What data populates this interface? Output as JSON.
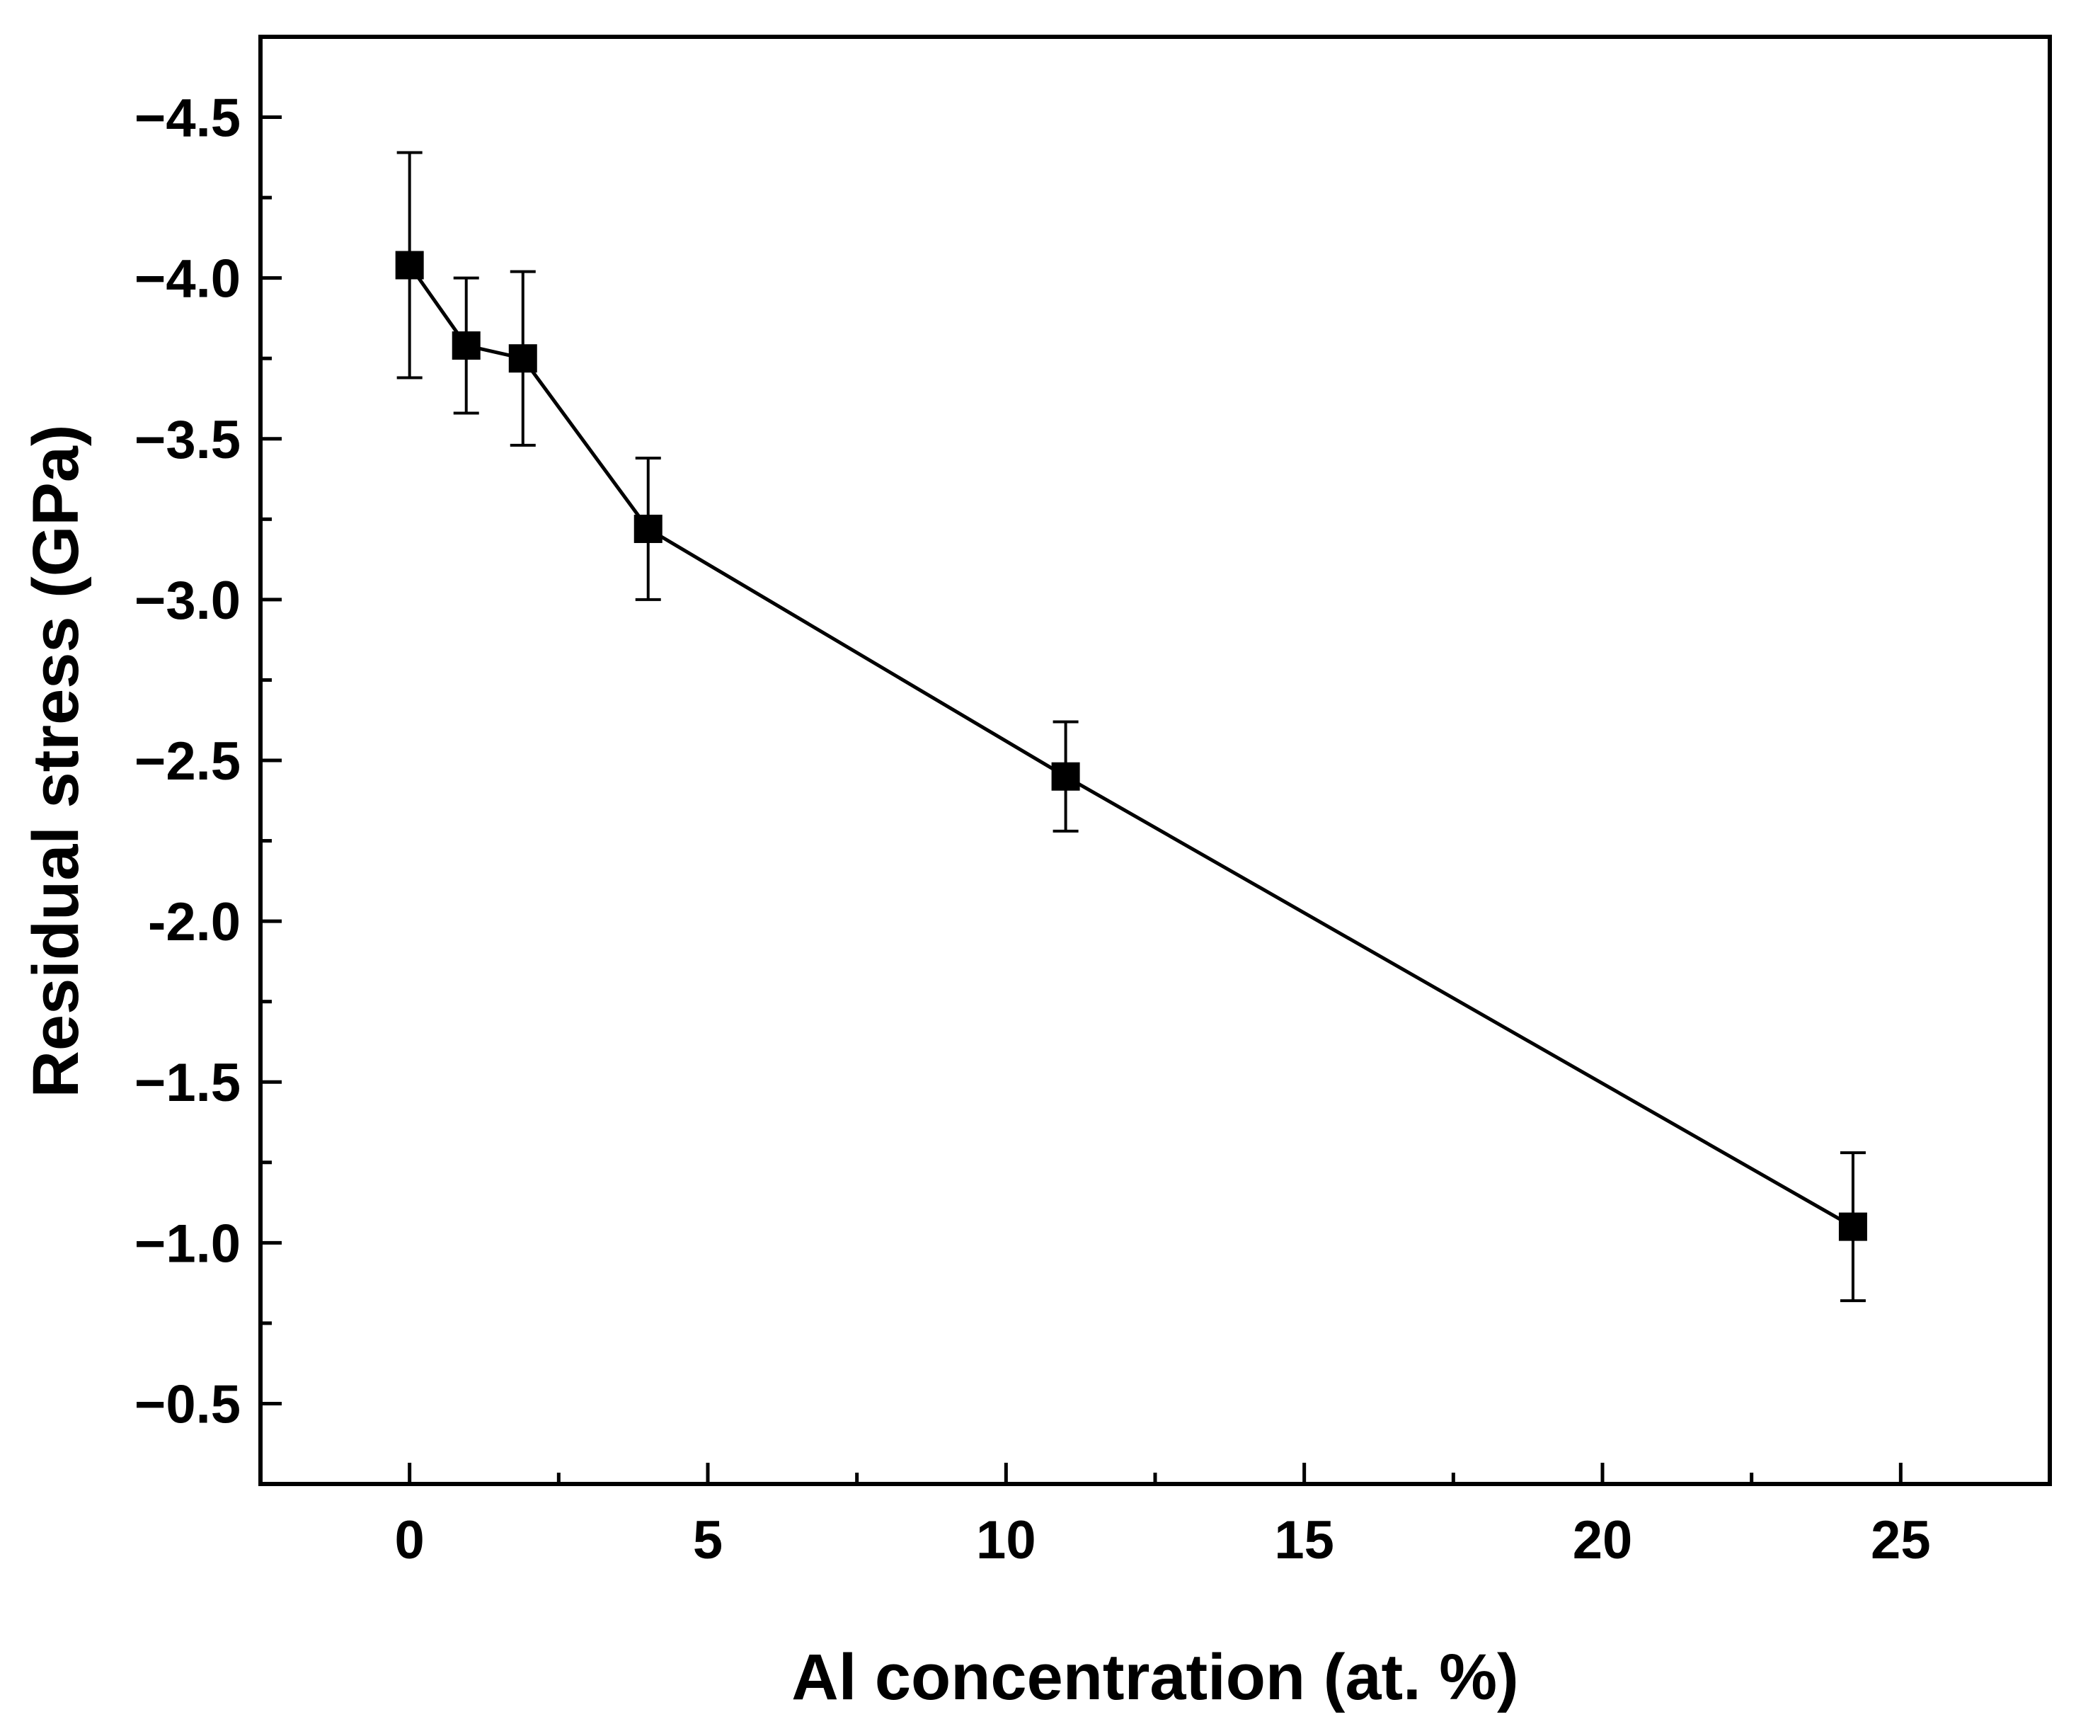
{
  "chart_data": {
    "type": "line",
    "title": "",
    "xlabel": "Al concentration (at. %)",
    "ylabel": "Residual stress (GPa)",
    "xlim": [
      -2.5,
      27.5
    ],
    "ylim": [
      -4.75,
      -0.25
    ],
    "y_inverted": true,
    "grid": false,
    "legend": "none",
    "x_ticks": [
      0,
      5,
      10,
      15,
      20,
      25
    ],
    "x_tick_labels": [
      "0",
      "5",
      "10",
      "15",
      "20",
      "25"
    ],
    "x_minor_ticks": [
      2.5,
      7.5,
      12.5,
      17.5,
      22.5
    ],
    "y_ticks": [
      -4.5,
      -4.0,
      -3.5,
      -3.0,
      -2.5,
      -2.0,
      -1.5,
      -1.0,
      -0.5
    ],
    "y_tick_labels": [
      "−4.5",
      "−4.0",
      "−3.5",
      "−3.0",
      "−2.5",
      "-2.0",
      "−1.5",
      "−1.0",
      "−0.5"
    ],
    "y_minor_ticks": [
      -4.25,
      -3.75,
      -3.25,
      -2.75,
      -2.25,
      -1.75,
      -1.25,
      -0.75
    ],
    "series": [
      {
        "name": "Residual stress",
        "marker": "square",
        "color": "#000000",
        "x": [
          0,
          0.95,
          1.9,
          4.0,
          11.0,
          24.2
        ],
        "y": [
          -4.04,
          -3.79,
          -3.75,
          -3.22,
          -2.45,
          -1.05
        ],
        "err_upper": [
          -4.39,
          -4.0,
          -4.02,
          -3.44,
          -2.62,
          -1.28
        ],
        "err_lower": [
          -3.69,
          -3.58,
          -3.48,
          -3.0,
          -2.28,
          -0.82
        ]
      }
    ]
  }
}
